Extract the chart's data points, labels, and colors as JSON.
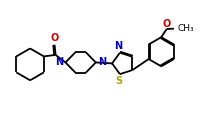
{
  "bg_color": "#ffffff",
  "bond_color": "#000000",
  "N_color": "#0000cc",
  "O_color": "#cc0000",
  "S_color": "#aaaa00",
  "lw": 1.3,
  "fs": 6.5,
  "xlim": [
    0,
    10.5
  ],
  "ylim": [
    0,
    6.2
  ]
}
